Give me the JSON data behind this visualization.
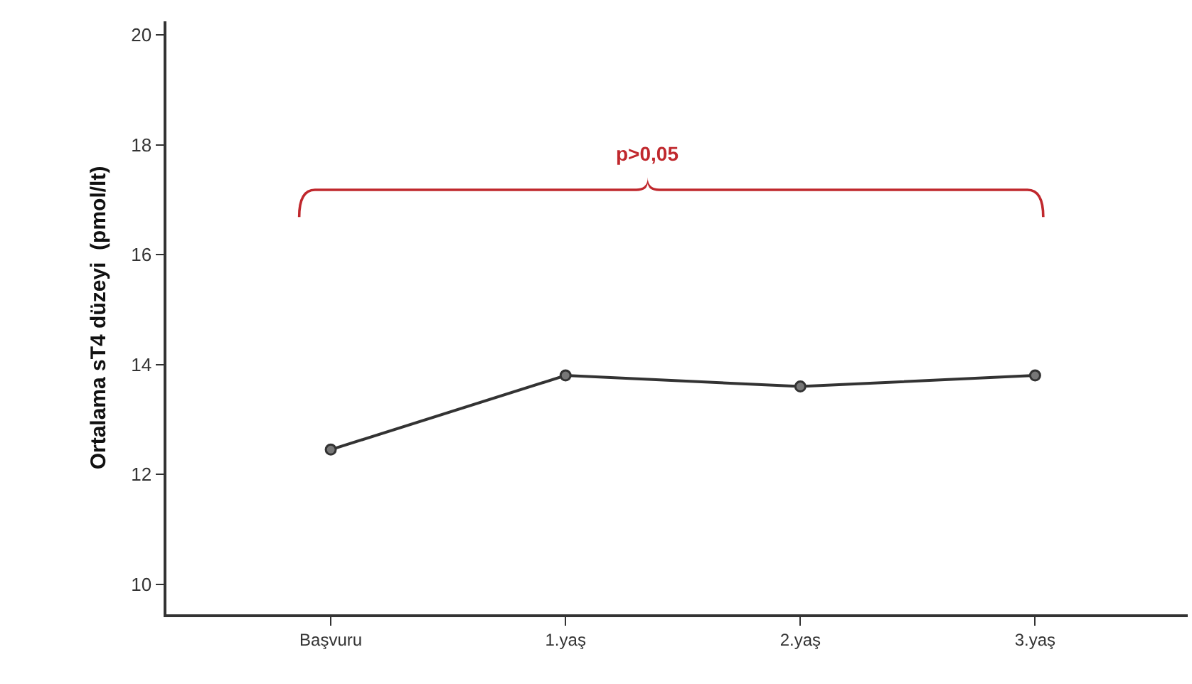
{
  "chart_data": {
    "type": "line",
    "ylabel": "Ortalama sT4 düzeyi  (pmol/lt)",
    "categories": [
      "Başvuru",
      "1.yaş",
      "2.yaş",
      "3.yaş"
    ],
    "series": [
      {
        "color": "#333333",
        "values": [
          12.45,
          13.8,
          13.6,
          13.8
        ]
      }
    ],
    "ylim": [
      9.45,
      20.25
    ],
    "yticks": [
      10,
      12,
      14,
      16,
      18,
      20
    ],
    "grid": false,
    "marker": "circle",
    "line_style": "solid",
    "annotations": [
      "p>0,05"
    ]
  }
}
